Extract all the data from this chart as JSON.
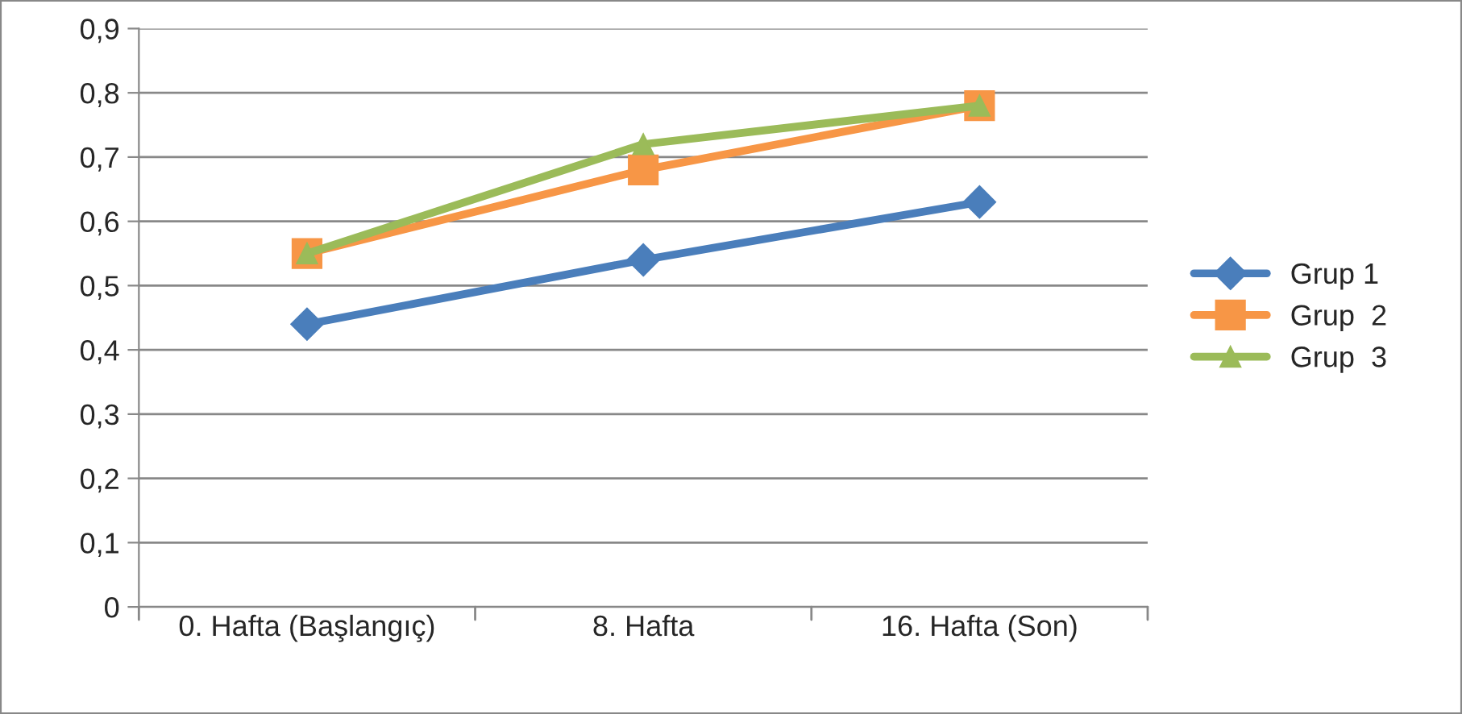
{
  "chart_data": {
    "type": "line",
    "categories": [
      "0. Hafta (Başlangıç)",
      "8. Hafta",
      "16. Hafta (Son)"
    ],
    "series": [
      {
        "name": "Grup 1",
        "color": "#4a7ebb",
        "marker": "diamond",
        "values": [
          0.44,
          0.54,
          0.63
        ]
      },
      {
        "name": "Grup  2",
        "color": "#f79646",
        "marker": "square",
        "values": [
          0.55,
          0.68,
          0.78
        ]
      },
      {
        "name": "Grup  3",
        "color": "#9bbb59",
        "marker": "triangle",
        "values": [
          0.55,
          0.72,
          0.78
        ]
      }
    ],
    "ylim": [
      0,
      0.9
    ],
    "yticks": [
      {
        "value": 0,
        "label": "0"
      },
      {
        "value": 0.1,
        "label": "0,1"
      },
      {
        "value": 0.2,
        "label": "0,2"
      },
      {
        "value": 0.3,
        "label": "0,3"
      },
      {
        "value": 0.4,
        "label": "0,4"
      },
      {
        "value": 0.5,
        "label": "0,5"
      },
      {
        "value": 0.6,
        "label": "0,6"
      },
      {
        "value": 0.7,
        "label": "0,7"
      },
      {
        "value": 0.8,
        "label": "0,8"
      },
      {
        "value": 0.9,
        "label": "0,9"
      }
    ],
    "grid": "y",
    "legend": "right",
    "line_style": "solid"
  }
}
